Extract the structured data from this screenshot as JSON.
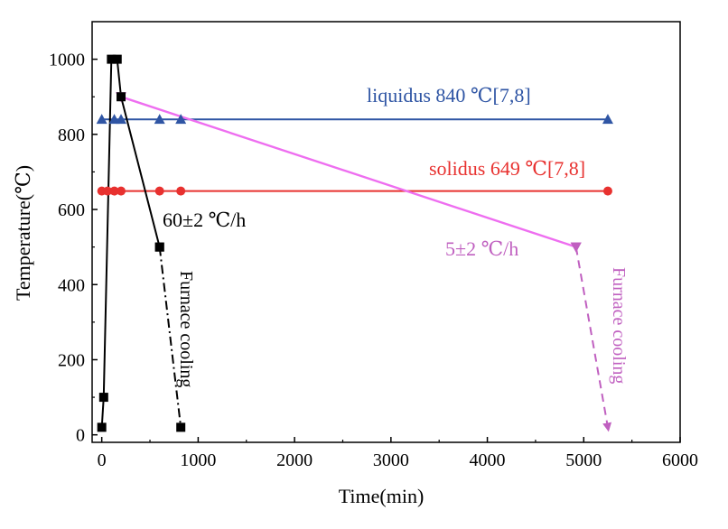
{
  "chart_data": {
    "type": "line",
    "title": "",
    "xlabel": "Time(min)",
    "ylabel": "Temperature(℃)",
    "xlim": [
      -100,
      6000
    ],
    "ylim": [
      -20,
      1100
    ],
    "xticks": [
      0,
      1000,
      2000,
      3000,
      4000,
      5000,
      6000
    ],
    "yticks": [
      0,
      200,
      400,
      600,
      800,
      1000
    ],
    "grid": false,
    "series": [
      {
        "name": "liquidus",
        "color": "#2f55a4",
        "marker": "triangle-up",
        "style": "solid",
        "x": [
          0,
          130,
          200,
          600,
          820,
          5250
        ],
        "y": [
          840,
          840,
          840,
          840,
          840,
          840
        ]
      },
      {
        "name": "solidus",
        "color": "#e8312f",
        "marker": "circle",
        "style": "solid",
        "x": [
          0,
          60,
          130,
          200,
          600,
          820,
          5250
        ],
        "y": [
          649,
          649,
          649,
          649,
          649,
          649,
          649
        ]
      },
      {
        "name": "slow-cooling",
        "color": "#ee6ef0",
        "marker": "triangle-down",
        "marker_color": "#c060c0",
        "style": "solid",
        "x": [
          200,
          4920
        ],
        "y": [
          900,
          500
        ]
      },
      {
        "name": "slow-furnace-cooling",
        "color": "#c060c0",
        "marker": "triangle-down",
        "style": "dashed",
        "arrow": true,
        "x": [
          4920,
          5250
        ],
        "y": [
          500,
          20
        ]
      },
      {
        "name": "fast-cooling",
        "color": "#000000",
        "marker": "square",
        "style": "solid",
        "x": [
          0,
          20,
          100,
          160,
          200,
          600
        ],
        "y": [
          20,
          100,
          1000,
          1000,
          900,
          500
        ]
      },
      {
        "name": "fast-furnace-cooling",
        "color": "#000000",
        "marker": "square",
        "style": "dashdot",
        "x": [
          600,
          820
        ],
        "y": [
          500,
          20
        ]
      }
    ],
    "annotations": {
      "liquidus": {
        "text": "liquidus 840 ℃[7,8]",
        "color": "#2f55a4"
      },
      "solidus": {
        "text": "solidus 649 ℃[7,8]",
        "color": "#e8312f"
      },
      "fast_rate": {
        "text": "60±2 ℃/h",
        "color": "#000000"
      },
      "slow_rate": {
        "text": "5±2 ℃/h",
        "color": "#c060c0"
      },
      "fast_furnace": {
        "text": "Furnace cooling",
        "color": "#000000"
      },
      "slow_furnace": {
        "text": "Furnace cooling",
        "color": "#c060c0"
      }
    }
  }
}
